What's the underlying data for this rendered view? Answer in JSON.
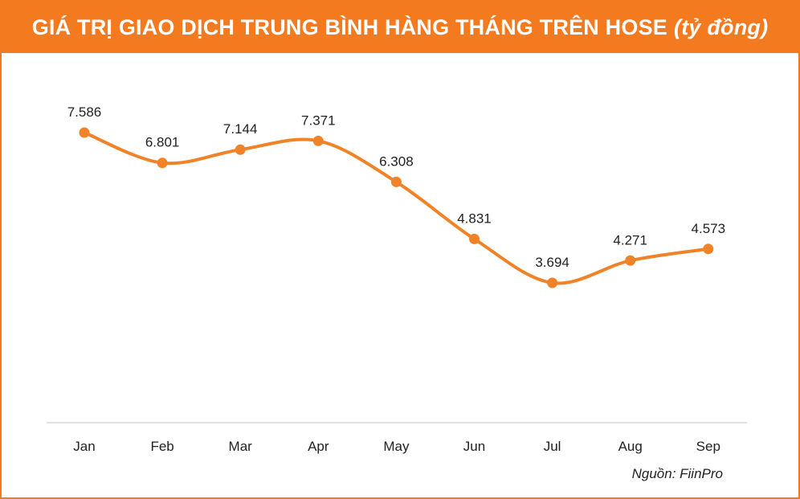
{
  "title": "GIÁ TRỊ GIAO DỊCH TRUNG BÌNH HÀNG THÁNG TRÊN HOSE",
  "title_unit": "(tỷ đồng)",
  "source": "Nguồn: FiinPro",
  "colors": {
    "accent": "#f47a20",
    "line": "#f08328",
    "axis": "#d9d9d9",
    "text": "#222222"
  },
  "chart_data": {
    "type": "line",
    "categories": [
      "Jan",
      "Feb",
      "Mar",
      "Apr",
      "May",
      "Jun",
      "Jul",
      "Aug",
      "Sep"
    ],
    "values": [
      7586,
      6801,
      7144,
      7371,
      6308,
      4831,
      3694,
      4271,
      4573
    ],
    "value_labels": [
      "7.586",
      "6.801",
      "7.144",
      "7.371",
      "6.308",
      "4.831",
      "3.694",
      "4.271",
      "4.573"
    ],
    "smooth": true,
    "grid": false
  }
}
